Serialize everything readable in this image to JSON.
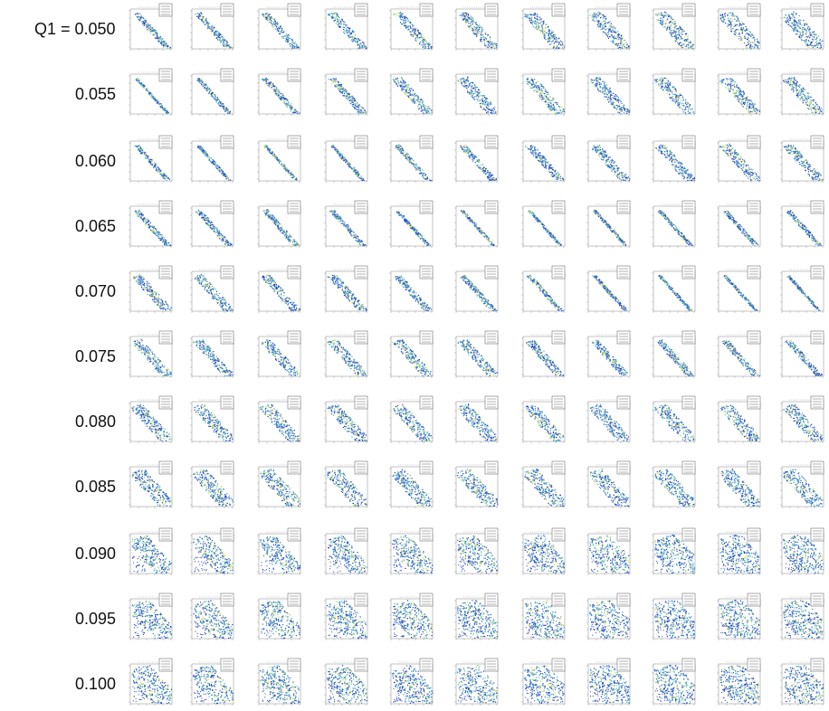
{
  "figure": {
    "first_row_prefix": "Q1 = ",
    "row_labels": [
      "0.050",
      "0.055",
      "0.060",
      "0.065",
      "0.070",
      "0.075",
      "0.080",
      "0.085",
      "0.090",
      "0.095",
      "0.100"
    ],
    "panels_per_row": 11
  },
  "chart_data": {
    "type": "heatmap",
    "title": "",
    "row_variable": "Q1",
    "rows": [
      "0.050",
      "0.055",
      "0.060",
      "0.065",
      "0.070",
      "0.075",
      "0.080",
      "0.085",
      "0.090",
      "0.095",
      "0.100"
    ],
    "columns_per_row": 11,
    "description_of_marks": "Each panel is a small 2D density plot with a diagonal band of points and a legend box in the top-right corner; tick labels are unreadable at this resolution.",
    "colormap": [
      "#1e3fb8",
      "#2e6fd0",
      "#3a9bd6",
      "#4bb9b9",
      "#8fd07a",
      "#d9d84a"
    ],
    "band_width_per_row": [
      [
        0.08,
        0.09,
        0.1,
        0.12,
        0.13,
        0.15,
        0.17,
        0.19,
        0.2,
        0.22,
        0.24
      ],
      [
        0.04,
        0.06,
        0.08,
        0.1,
        0.14,
        0.16,
        0.16,
        0.16,
        0.16,
        0.16,
        0.16
      ],
      [
        0.06,
        0.05,
        0.04,
        0.05,
        0.07,
        0.09,
        0.11,
        0.13,
        0.14,
        0.14,
        0.14
      ],
      [
        0.08,
        0.08,
        0.08,
        0.07,
        0.05,
        0.04,
        0.04,
        0.04,
        0.05,
        0.06,
        0.07
      ],
      [
        0.13,
        0.13,
        0.12,
        0.12,
        0.1,
        0.08,
        0.06,
        0.05,
        0.04,
        0.04,
        0.04
      ],
      [
        0.14,
        0.14,
        0.14,
        0.14,
        0.14,
        0.14,
        0.12,
        0.1,
        0.1,
        0.09,
        0.08
      ],
      [
        0.18,
        0.18,
        0.18,
        0.18,
        0.18,
        0.18,
        0.18,
        0.18,
        0.18,
        0.18,
        0.18
      ],
      [
        0.22,
        0.22,
        0.22,
        0.22,
        0.22,
        0.22,
        0.22,
        0.22,
        0.22,
        0.22,
        0.22
      ],
      [
        0.28,
        0.28,
        0.28,
        0.3,
        0.32,
        0.36,
        0.4,
        0.42,
        0.44,
        0.44,
        0.44
      ],
      [
        0.34,
        0.34,
        0.36,
        0.38,
        0.4,
        0.44,
        0.46,
        0.46,
        0.46,
        0.46,
        0.46
      ],
      [
        0.36,
        0.36,
        0.38,
        0.4,
        0.42,
        0.44,
        0.46,
        0.46,
        0.46,
        0.46,
        0.46
      ]
    ],
    "scatter_cluster_rows": [
      "0.090",
      "0.095",
      "0.100"
    ]
  }
}
